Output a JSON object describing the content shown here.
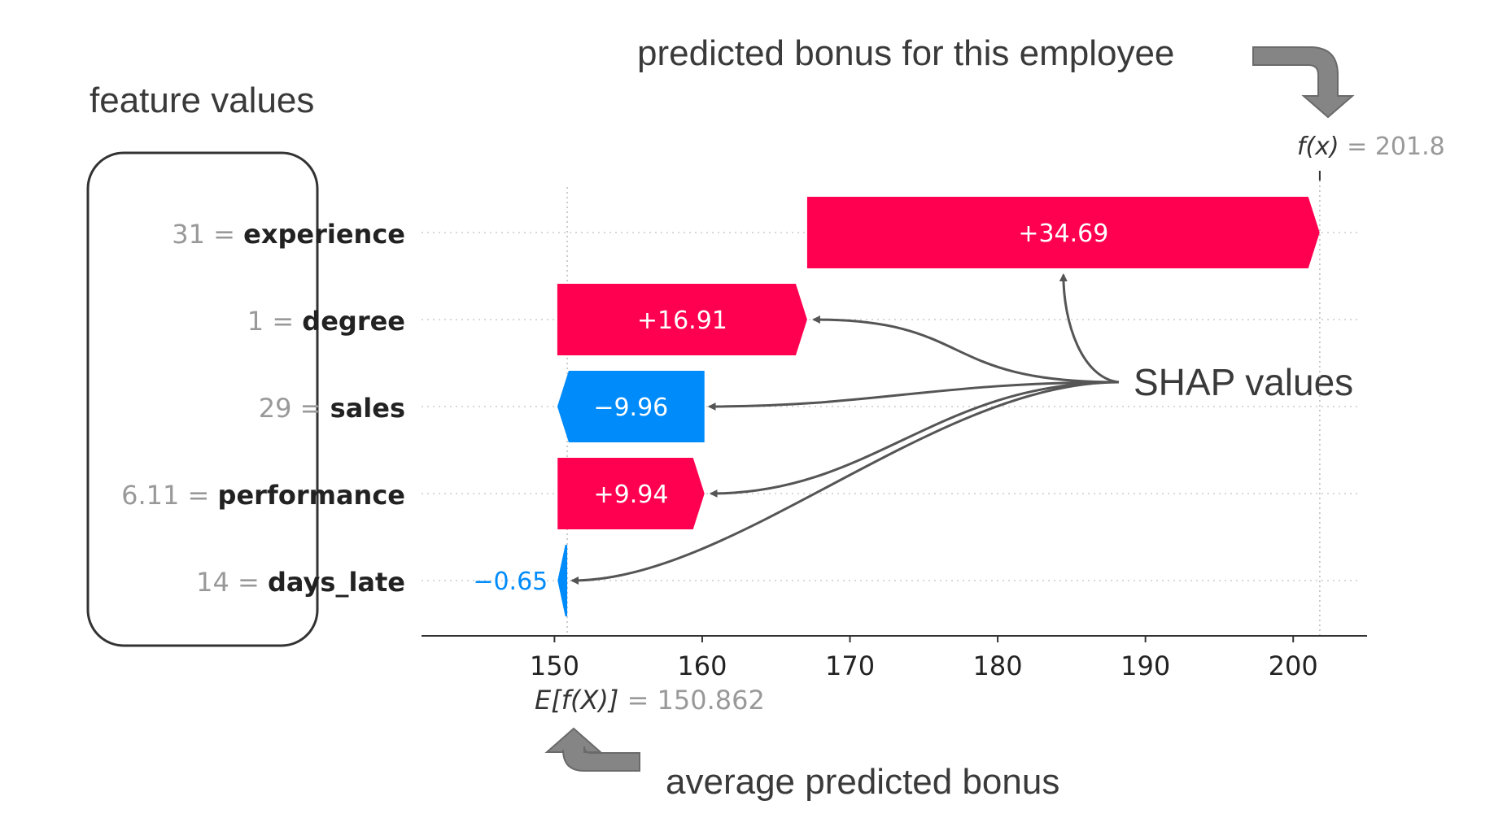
{
  "annotations": {
    "feature_values": "feature values",
    "predicted_bonus": "predicted bonus for this employee",
    "shap_values": "SHAP values",
    "average_bonus": "average predicted bonus"
  },
  "chart_data": {
    "type": "bar",
    "subtype": "shap-waterfall",
    "base_value": 150.862,
    "base_label_name": "E[f(X)]",
    "base_label_value": "150.862",
    "output_value": 201.8,
    "output_label_name": "f(x)",
    "output_label_value": "201.8",
    "xlim": [
      141,
      205
    ],
    "xticks": [
      150,
      160,
      170,
      180,
      190,
      200
    ],
    "xtick_labels": [
      "150",
      "160",
      "170",
      "180",
      "190",
      "200"
    ],
    "features": [
      {
        "value": "31",
        "name": "experience",
        "shap": 34.69,
        "label": "+34.69"
      },
      {
        "value": "1",
        "name": "degree",
        "shap": 16.91,
        "label": "+16.91"
      },
      {
        "value": "29",
        "name": "sales",
        "shap": -9.96,
        "label": "−9.96"
      },
      {
        "value": "6.11",
        "name": "performance",
        "shap": 9.94,
        "label": "+9.94"
      },
      {
        "value": "14",
        "name": "days_late",
        "shap": -0.65,
        "label": "−0.65"
      }
    ],
    "colors": {
      "positive": "#ff0051",
      "negative": "#008bfb",
      "value_text": "#999999",
      "name_text": "#222222"
    }
  }
}
